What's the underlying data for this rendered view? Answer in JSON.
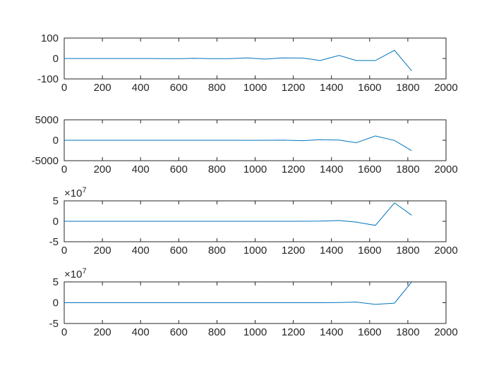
{
  "figure": {
    "background": "#ffffff"
  },
  "line_color": "#0072BD",
  "axis_color": "#262626",
  "chart_data": [
    {
      "type": "line",
      "title": "",
      "xlabel": "",
      "ylabel": "",
      "xlim": [
        0,
        2000
      ],
      "ylim": [
        -100,
        100
      ],
      "xticks": [
        0,
        200,
        400,
        600,
        800,
        1000,
        1200,
        1400,
        1600,
        1800,
        2000
      ],
      "yticks": [
        -100,
        0,
        100
      ],
      "ytick_labels": [
        "-100",
        "0",
        "100"
      ],
      "y_exponent": "",
      "grid": false,
      "series": [
        {
          "x": [
            0,
            90,
            180,
            270,
            360,
            450,
            540,
            600,
            680,
            770,
            860,
            960,
            1050,
            1140,
            1250,
            1340,
            1440,
            1530,
            1630,
            1730,
            1820
          ],
          "y": [
            0,
            0,
            0,
            0,
            0,
            0,
            -1,
            -1,
            1,
            -1,
            -1,
            3,
            -3,
            3,
            2,
            -10,
            15,
            -10,
            -10,
            40,
            -60
          ]
        }
      ]
    },
    {
      "type": "line",
      "title": "",
      "xlabel": "",
      "ylabel": "",
      "xlim": [
        0,
        2000
      ],
      "ylim": [
        -5000,
        5000
      ],
      "xticks": [
        0,
        200,
        400,
        600,
        800,
        1000,
        1200,
        1400,
        1600,
        1800,
        2000
      ],
      "yticks": [
        -5000,
        0,
        5000
      ],
      "ytick_labels": [
        "-5000",
        "0",
        "5000"
      ],
      "y_exponent": "",
      "grid": false,
      "series": [
        {
          "x": [
            0,
            90,
            180,
            270,
            360,
            450,
            540,
            630,
            720,
            810,
            900,
            960,
            1050,
            1150,
            1250,
            1340,
            1440,
            1530,
            1630,
            1730,
            1820
          ],
          "y": [
            0,
            0,
            0,
            0,
            0,
            0,
            0,
            0,
            0,
            0,
            0,
            -30,
            0,
            30,
            -100,
            150,
            50,
            -600,
            1050,
            -50,
            -2550
          ]
        }
      ]
    },
    {
      "type": "line",
      "title": "",
      "xlabel": "",
      "ylabel": "",
      "xlim": [
        0,
        2000
      ],
      "ylim": [
        -5,
        5
      ],
      "xticks": [
        0,
        200,
        400,
        600,
        800,
        1000,
        1200,
        1400,
        1600,
        1800,
        2000
      ],
      "yticks": [
        -5,
        0,
        5
      ],
      "ytick_labels": [
        "-5",
        "0",
        "5"
      ],
      "y_exponent": "7",
      "grid": false,
      "series": [
        {
          "x": [
            0,
            200,
            400,
            600,
            800,
            1000,
            1200,
            1340,
            1440,
            1530,
            1630,
            1730,
            1820
          ],
          "y": [
            0,
            0,
            0,
            0,
            0,
            0,
            0,
            0.05,
            0.2,
            -0.2,
            -1.0,
            4.5,
            1.5
          ]
        }
      ]
    },
    {
      "type": "line",
      "title": "",
      "xlabel": "",
      "ylabel": "",
      "xlim": [
        0,
        2000
      ],
      "ylim": [
        -5,
        5
      ],
      "xticks": [
        0,
        200,
        400,
        600,
        800,
        1000,
        1200,
        1400,
        1600,
        1800,
        2000
      ],
      "yticks": [
        -5,
        0,
        5
      ],
      "ytick_labels": [
        "-5",
        "0",
        "5"
      ],
      "y_exponent": "7",
      "grid": false,
      "series": [
        {
          "x": [
            0,
            200,
            400,
            600,
            800,
            1000,
            1200,
            1340,
            1440,
            1530,
            1630,
            1730,
            1820
          ],
          "y": [
            0,
            0,
            0,
            0,
            0,
            0,
            0,
            0,
            0.05,
            0.15,
            -0.4,
            -0.1,
            5.0
          ]
        }
      ]
    }
  ]
}
